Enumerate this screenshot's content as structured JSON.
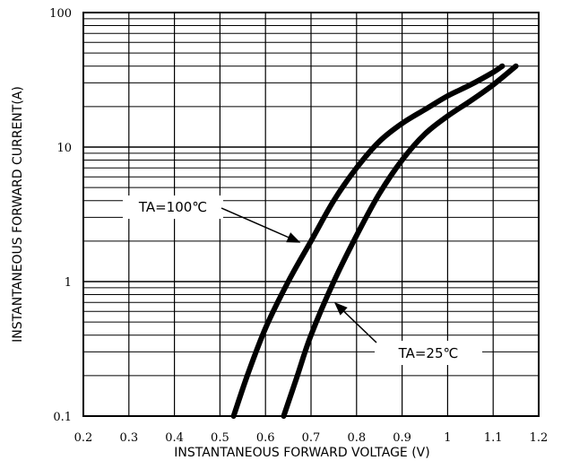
{
  "chart_data": {
    "type": "line",
    "xlabel": "INSTANTANEOUS FORWARD VOLTAGE (V)",
    "ylabel": "INSTANTANEOUS FORWARD CURRENT(A)",
    "xlim": [
      0.2,
      1.2
    ],
    "ylim": [
      0.1,
      100
    ],
    "y_scale": "log",
    "x_ticks": [
      "0.2",
      "0.3",
      "0.4",
      "0.5",
      "0.6",
      "0.7",
      "0.8",
      "0.9",
      "1",
      "1.1",
      "1.2"
    ],
    "y_ticks": [
      "0.1",
      "1",
      "10",
      "100"
    ],
    "grid": true,
    "series": [
      {
        "x": [
          0.53,
          0.56,
          0.6,
          0.65,
          0.7,
          0.75,
          0.8,
          0.85,
          0.9,
          0.95,
          1.0,
          1.05,
          1.1,
          1.12
        ],
        "y": [
          0.1,
          0.2,
          0.45,
          1.0,
          2.0,
          4.0,
          7.0,
          11,
          15,
          19,
          24,
          29,
          36,
          40
        ]
      },
      {
        "x": [
          0.64,
          0.67,
          0.7,
          0.75,
          0.8,
          0.85,
          0.9,
          0.95,
          1.0,
          1.05,
          1.1,
          1.15
        ],
        "y": [
          0.1,
          0.2,
          0.4,
          1.0,
          2.2,
          4.5,
          8.0,
          12.5,
          17,
          22,
          29,
          40
        ]
      }
    ],
    "annotations": [
      {
        "text": "TA=100℃",
        "points_to_series": 0
      },
      {
        "text": "TA=25℃",
        "points_to_series": 1
      }
    ]
  }
}
